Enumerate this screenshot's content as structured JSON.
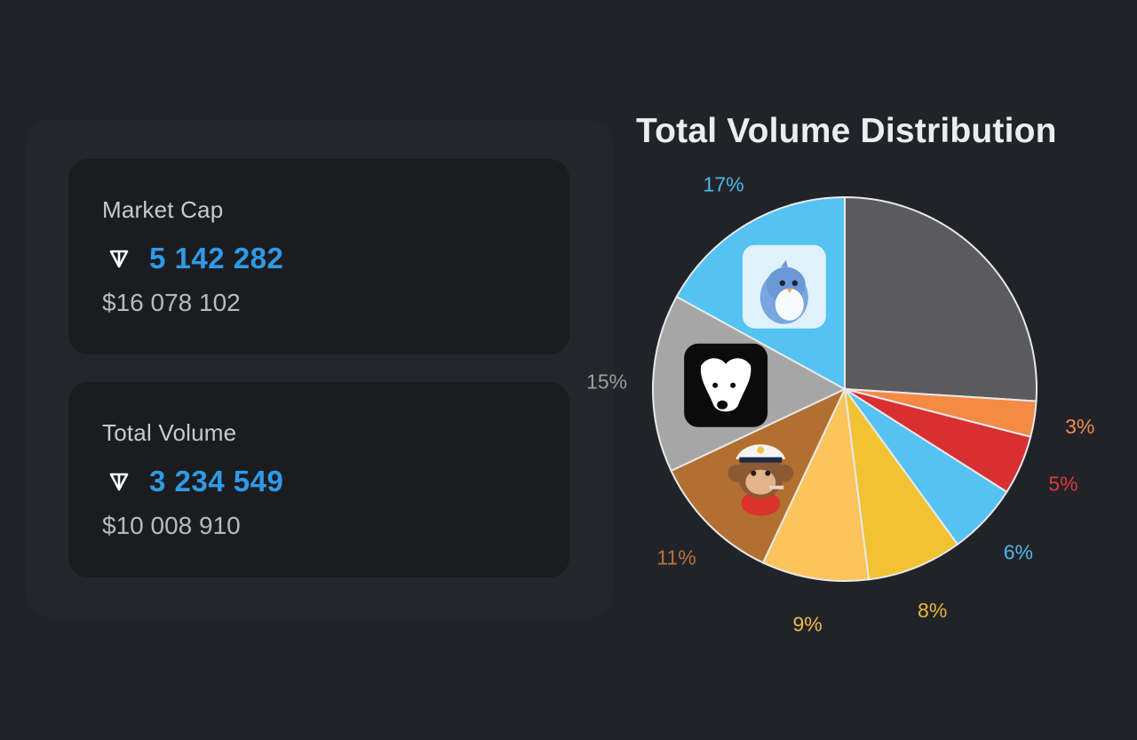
{
  "market_cap": {
    "label": "Market Cap",
    "ton_value": "5 142 282",
    "usd_value": "$16 078 102"
  },
  "total_volume": {
    "label": "Total Volume",
    "ton_value": "3 234 549",
    "usd_value": "$10 008 910"
  },
  "colors": {
    "accent_blue": "#2f9ae6",
    "card_bg": "#1b1c20",
    "page_bg": "#222328"
  },
  "chart_data": {
    "type": "pie",
    "title": "Total Volume Distribution",
    "slices": [
      {
        "value": 26,
        "label": "",
        "color": "#5b5b5d"
      },
      {
        "value": 3,
        "label": "3%",
        "color": "#f58a45",
        "label_color": "#f08a4d"
      },
      {
        "value": 5,
        "label": "5%",
        "color": "#d83030",
        "label_color": "#dd3a3a"
      },
      {
        "value": 6,
        "label": "6%",
        "color": "#54c2f3",
        "label_color": "#4db6ec"
      },
      {
        "value": 8,
        "label": "8%",
        "color": "#f1c232",
        "label_color": "#e8b93a"
      },
      {
        "value": 9,
        "label": "9%",
        "color": "#fcc45a",
        "label_color": "#f0b94e"
      },
      {
        "value": 11,
        "label": "11%",
        "color": "#b36f30",
        "label_color": "#b8743a",
        "icon": "ape-captain-icon"
      },
      {
        "value": 15,
        "label": "15%",
        "color": "#a6a6a6",
        "label_color": "#9c9c9c",
        "icon": "dog-icon"
      },
      {
        "value": 17,
        "label": "17%",
        "color": "#54c2f3",
        "label_color": "#4db6ec",
        "icon": "penguin-icon"
      }
    ]
  }
}
